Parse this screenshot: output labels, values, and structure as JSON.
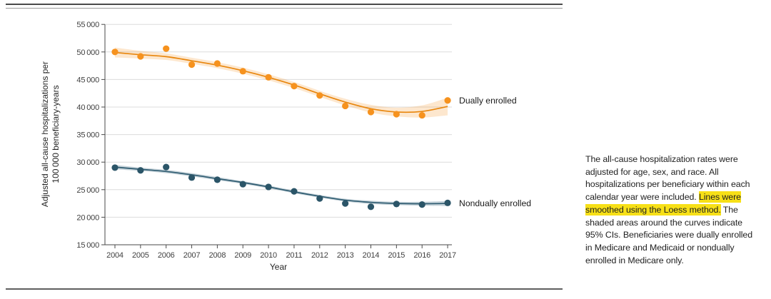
{
  "figure": {
    "caption": {
      "part1": "The all-cause hospitalization rates were adjusted for age, sex, and race. All hospitalizations per beneficiary within each calendar year were included. ",
      "highlight": "Lines were smoothed using the Loess method.",
      "part2": " The shaded areas around the curves indicate 95% CIs. Beneficiaries were dually enrolled in Medicare and Medicaid or nondually enrolled in Medicare only.",
      "highlight_color": "#f7e017"
    }
  },
  "chart_data": {
    "type": "line",
    "title": "",
    "xlabel": "Year",
    "ylabel_line1": "Adjusted all-cause hospitalizations per",
    "ylabel_line2": "100 000 beneficiary-years",
    "x": [
      2004,
      2005,
      2006,
      2007,
      2008,
      2009,
      2010,
      2011,
      2012,
      2013,
      2014,
      2015,
      2016,
      2017
    ],
    "ylim": [
      15000,
      55000
    ],
    "y_tick_values": [
      15000,
      20000,
      25000,
      30000,
      35000,
      40000,
      45000,
      50000,
      55000
    ],
    "y_tick_labels": [
      "15 000",
      "20 000",
      "25 000",
      "30 000",
      "35 000",
      "40 000",
      "45 000",
      "50 000",
      "55 000"
    ],
    "grid": true,
    "legend_position": "right of last point",
    "ci_note": "shaded areas are 95% CIs, loess-smoothed lines",
    "series": [
      {
        "name": "Dually enrolled",
        "dot_color": "#f6921e",
        "line_color": "#e8860d",
        "band_color": "#f6921e",
        "band_opacity": 0.22,
        "values": [
          50000,
          49200,
          50600,
          47700,
          47900,
          46500,
          45400,
          43800,
          42100,
          40200,
          39100,
          38700,
          38500,
          41200
        ],
        "loess": [
          49900,
          49500,
          49150,
          48400,
          47600,
          46600,
          45400,
          44000,
          42400,
          40900,
          39700,
          39100,
          39200,
          40100
        ],
        "ci_upper": [
          50800,
          50200,
          49750,
          48950,
          48150,
          47150,
          45950,
          44550,
          42950,
          41500,
          40400,
          39900,
          40300,
          41700
        ],
        "ci_lower": [
          49000,
          48800,
          48550,
          47850,
          47050,
          46050,
          44850,
          43450,
          41850,
          40300,
          39000,
          38300,
          38100,
          38500
        ]
      },
      {
        "name": "Nondually enrolled",
        "dot_color": "#2b5568",
        "line_color": "#2e5b70",
        "band_color": "#31607a",
        "band_opacity": 0.28,
        "values": [
          29000,
          28500,
          29100,
          27200,
          26800,
          26000,
          25500,
          24700,
          23400,
          22500,
          21900,
          22400,
          22300,
          22600
        ],
        "loess": [
          29100,
          28700,
          28300,
          27700,
          27000,
          26300,
          25500,
          24600,
          23800,
          23100,
          22700,
          22500,
          22450,
          22500
        ],
        "ci_upper": [
          29500,
          29000,
          28600,
          28000,
          27300,
          26550,
          25750,
          24850,
          24050,
          23350,
          23000,
          22800,
          22800,
          22950
        ],
        "ci_lower": [
          28700,
          28400,
          28000,
          27400,
          26700,
          26050,
          25250,
          24350,
          23550,
          22850,
          22400,
          22200,
          22100,
          22050
        ]
      }
    ]
  }
}
